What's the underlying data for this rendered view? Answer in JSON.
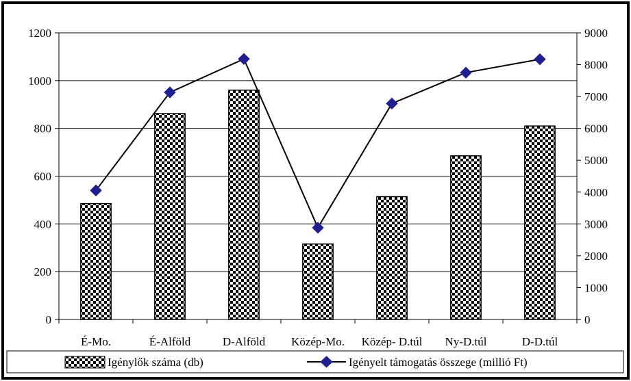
{
  "chart_data": {
    "type": "bar",
    "combo": "bar + line (secondary y-axis)",
    "categories": [
      "É-Mo.",
      "É-Alföld",
      "D-Alföld",
      "Közép-Mo.",
      "Közép- D.túl",
      "Ny-D.túl",
      "D-D.túl"
    ],
    "series": [
      {
        "name": "Igénylők száma (db)",
        "type": "bar",
        "axis": "left",
        "pattern": "checkerboard",
        "values": [
          485,
          862,
          960,
          316,
          514,
          685,
          810
        ]
      },
      {
        "name": "Igényelt támogatás összege (millió Ft)",
        "type": "line",
        "axis": "right",
        "marker": "diamond",
        "color": "#1f1f8f",
        "values": [
          4050,
          7130,
          8180,
          2880,
          6780,
          7750,
          8170
        ]
      }
    ],
    "y_left": {
      "min": 0,
      "max": 1200,
      "ticks": [
        "0",
        "200",
        "400",
        "600",
        "800",
        "1000",
        "1200"
      ]
    },
    "y_right": {
      "min": 0,
      "max": 9000,
      "ticks": [
        "0",
        "1000",
        "2000",
        "3000",
        "4000",
        "5000",
        "6000",
        "7000",
        "8000",
        "9000"
      ]
    },
    "grid": true,
    "legend_position": "bottom"
  },
  "legend": {
    "bar_label": "Igénylők száma (db)",
    "line_label": "Igényelt támogatás összege (millió Ft)"
  }
}
